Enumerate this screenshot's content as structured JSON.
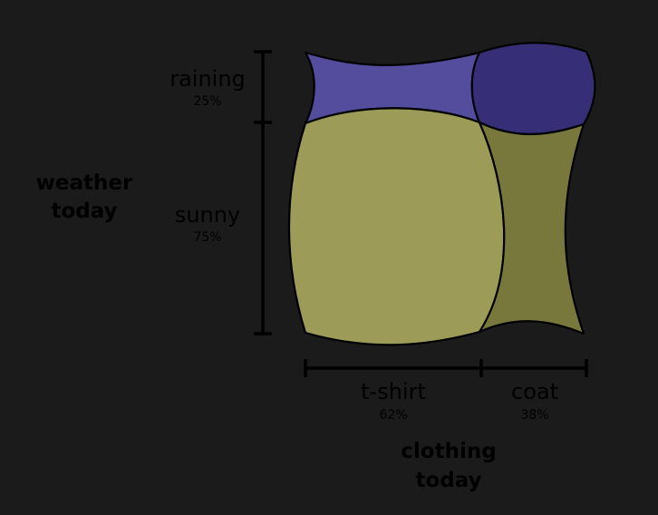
{
  "diagram": {
    "y_axis": {
      "title_lines": [
        "weather",
        "today"
      ],
      "categories": [
        {
          "label": "raining",
          "percent": "25%"
        },
        {
          "label": "sunny",
          "percent": "75%"
        }
      ]
    },
    "x_axis": {
      "title_lines": [
        "clothing",
        "today"
      ],
      "categories": [
        {
          "label": "t-shirt",
          "percent": "62%"
        },
        {
          "label": "coat",
          "percent": "38%"
        }
      ]
    },
    "cells": [
      {
        "row": "raining",
        "column": "t-shirt",
        "color": "#544c9c"
      },
      {
        "row": "raining",
        "column": "coat",
        "color": "#362f78"
      },
      {
        "row": "sunny",
        "column": "t-shirt",
        "color": "#9c9c58"
      },
      {
        "row": "sunny",
        "column": "coat",
        "color": "#78783c"
      }
    ],
    "colors": {
      "background": "#1b1b1b",
      "ink": "#000000"
    }
  }
}
